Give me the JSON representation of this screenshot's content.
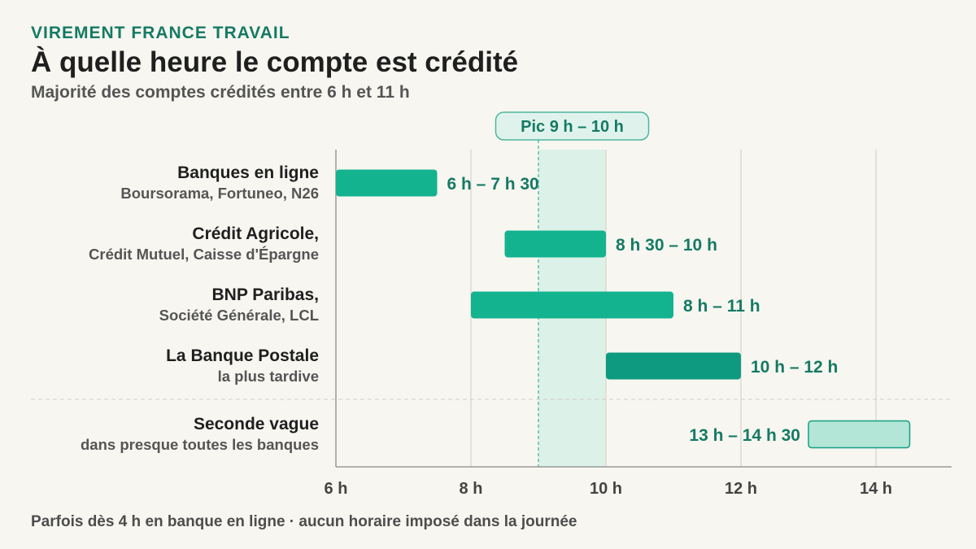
{
  "header": {
    "kicker": "VIREMENT FRANCE TRAVAIL",
    "title": "À quelle heure le compte est crédité",
    "subtitle": "Majorité des comptes crédités entre 6 h et 11 h"
  },
  "footnote": "Parfois dès 4 h en banque en ligne · aucun horaire imposé dans la journée",
  "colors": {
    "bar": "#14b38f",
    "bar_late": "#0d9a80",
    "bar_second": "#b3e6d7",
    "bar_second_border": "#14a083",
    "peak_band": "#dcf1e8",
    "label_text": "#157a63",
    "axis": "#999999",
    "grid": "#dddad2"
  },
  "chart_data": {
    "type": "bar",
    "orientation": "horizontal-range",
    "x_unit": "h",
    "xlim": [
      6,
      15
    ],
    "xticks": [
      6,
      8,
      10,
      12,
      14
    ],
    "xtick_labels": [
      "6 h",
      "8 h",
      "10 h",
      "12 h",
      "14 h"
    ],
    "grid": true,
    "peak": {
      "start": 9,
      "end": 10,
      "label": "Pic 9 h – 10 h"
    },
    "rows": [
      {
        "name": "Banques en ligne",
        "detail": "Boursorama, Fortuneo, N26",
        "start": 6,
        "end": 7.5,
        "label": "6 h – 7 h 30",
        "style": "normal",
        "label_side": "right"
      },
      {
        "name": "Crédit Agricole,",
        "detail": "Crédit Mutuel, Caisse d'Épargne",
        "start": 8.5,
        "end": 10,
        "label": "8 h 30 – 10 h",
        "style": "normal",
        "label_side": "right"
      },
      {
        "name": "BNP Paribas,",
        "detail": "Société Générale, LCL",
        "start": 8,
        "end": 11,
        "label": "8 h – 11 h",
        "style": "normal",
        "label_side": "right"
      },
      {
        "name": "La Banque Postale",
        "detail": "la plus tardive",
        "start": 10,
        "end": 12,
        "label": "10 h – 12 h",
        "style": "late",
        "label_side": "right"
      },
      {
        "name": "Seconde vague",
        "detail": "dans presque toutes les banques",
        "start": 13,
        "end": 14.5,
        "label": "13 h – 14 h 30",
        "style": "second",
        "label_side": "left"
      }
    ]
  }
}
